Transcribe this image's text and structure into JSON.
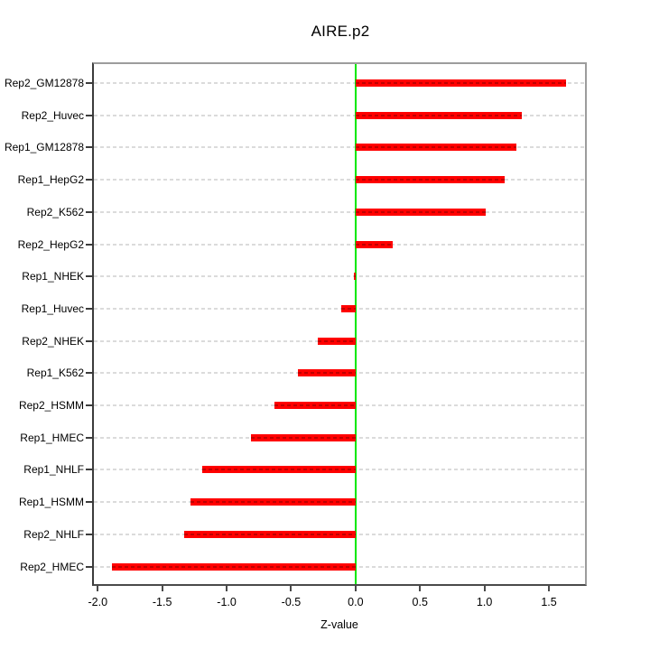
{
  "chart_data": {
    "type": "bar",
    "orientation": "horizontal",
    "title": "AIRE.p2",
    "xlabel": "Z-value",
    "ylabel": "",
    "categories": [
      "Rep2_GM12878",
      "Rep2_Huvec",
      "Rep1_GM12878",
      "Rep1_HepG2",
      "Rep2_K562",
      "Rep2_HepG2",
      "Rep1_NHEK",
      "Rep1_Huvec",
      "Rep2_NHEK",
      "Rep1_K562",
      "Rep2_HSMM",
      "Rep1_HMEC",
      "Rep1_NHLF",
      "Rep1_HSMM",
      "Rep2_NHLF",
      "Rep2_HMEC"
    ],
    "values": [
      1.63,
      1.29,
      1.25,
      1.16,
      1.01,
      0.29,
      -0.01,
      -0.11,
      -0.29,
      -0.45,
      -0.63,
      -0.81,
      -1.19,
      -1.28,
      -1.33,
      -1.89
    ],
    "xlim": [
      -2.03,
      1.78
    ],
    "xticks": [
      "-2.0",
      "-1.5",
      "-1.0",
      "-0.5",
      "0.0",
      "0.5",
      "1.0",
      "1.5"
    ],
    "grid": "horizontal-dashed-per-category",
    "legend": "none",
    "bar_color": "#ff0000",
    "zero_line_color": "#00e800",
    "grid_color": "#dbdbdb"
  }
}
